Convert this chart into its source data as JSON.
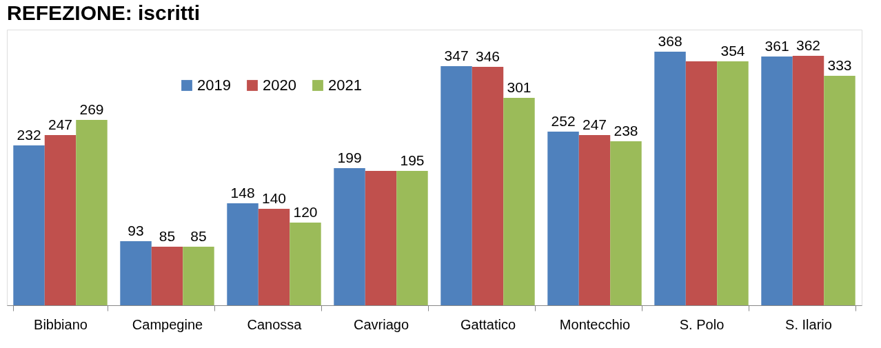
{
  "chart_data": {
    "type": "bar",
    "title": "REFEZIONE: iscritti",
    "categories": [
      "Bibbiano",
      "Campegine",
      "Canossa",
      "Cavriago",
      "Gattatico",
      "Montecchio",
      "S. Polo",
      "S. Ilario"
    ],
    "series": [
      {
        "name": "2019",
        "color": "#4f81bd",
        "values": [
          232,
          93,
          148,
          199,
          347,
          252,
          368,
          361
        ],
        "value_labels": [
          "232",
          "93",
          "148",
          "199",
          "347",
          "252",
          "368",
          "361"
        ]
      },
      {
        "name": "2020",
        "color": "#c0504d",
        "values": [
          247,
          85,
          140,
          195,
          346,
          247,
          354,
          362
        ],
        "value_labels": [
          "247",
          "85",
          "140",
          null,
          "346",
          "247",
          null,
          "362"
        ]
      },
      {
        "name": "2021",
        "color": "#9bbb59",
        "values": [
          269,
          85,
          120,
          195,
          301,
          238,
          354,
          333
        ],
        "value_labels": [
          "269",
          "85",
          "120",
          "195",
          "301",
          "238",
          "354",
          "333"
        ]
      }
    ],
    "legend": "top",
    "grid": false
  }
}
